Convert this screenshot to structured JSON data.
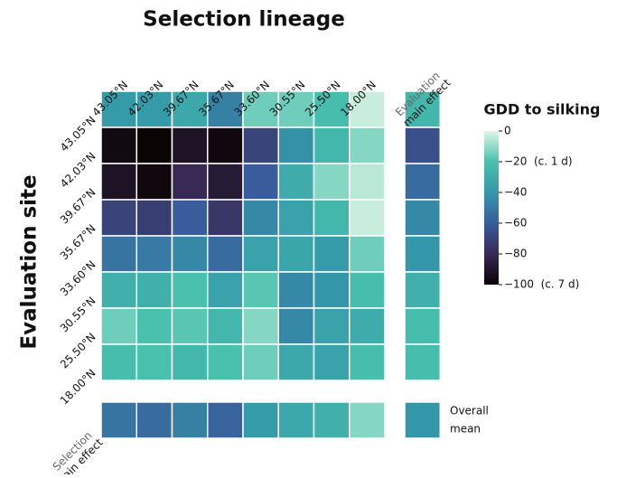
{
  "chart_data": {
    "type": "heatmap",
    "title": "Selection lineage",
    "ylabel": "Evaluation site",
    "x_categories": [
      "43.05°N",
      "42.03°N",
      "39.67°N",
      "35.67°N",
      "33.60°N",
      "30.55°N",
      "25.50°N",
      "18.00°N"
    ],
    "y_categories": [
      "43.05°N",
      "42.03°N",
      "39.67°N",
      "35.67°N",
      "33.60°N",
      "30.55°N",
      "25.50°N",
      "18.00°N"
    ],
    "values": [
      [
        -38,
        -38,
        -32,
        -48,
        -15,
        -15,
        -22,
        -3
      ],
      [
        -97,
        -100,
        -92,
        -98,
        -70,
        -42,
        -25,
        -12
      ],
      [
        -92,
        -98,
        -80,
        -88,
        -60,
        -30,
        -12,
        -5
      ],
      [
        -70,
        -72,
        -60,
        -75,
        -45,
        -35,
        -25,
        -3
      ],
      [
        -52,
        -50,
        -45,
        -55,
        -35,
        -33,
        -38,
        -15
      ],
      [
        -28,
        -28,
        -20,
        -35,
        -18,
        -45,
        -40,
        -22
      ],
      [
        -15,
        -20,
        -18,
        -25,
        -12,
        -45,
        -35,
        -30
      ],
      [
        -22,
        -20,
        -25,
        -20,
        -15,
        -32,
        -35,
        -22
      ]
    ],
    "evaluation_main_label": [
      "Evaluation",
      "main effect"
    ],
    "evaluation_main_values": [
      -25,
      -65,
      -55,
      -45,
      -40,
      -28,
      -22,
      -22
    ],
    "selection_main_label": [
      "Selection",
      "main effect"
    ],
    "selection_main_values": [
      -52,
      -55,
      -48,
      -58,
      -38,
      -32,
      -28,
      -12
    ],
    "overall_label": [
      "Overall",
      "mean"
    ],
    "overall_mean": -40,
    "colorbar_title": "GDD to silking",
    "clim": [
      -100,
      0
    ],
    "cticks": [
      0,
      {
        "value": -20,
        "label": "−20  (c. 1 d)"
      },
      {
        "value": -40,
        "label": "−40"
      },
      {
        "value": -60,
        "label": "−60"
      },
      {
        "value": -80,
        "label": "−80"
      },
      {
        "value": -100,
        "label": "−100  (c. 7 d)"
      }
    ],
    "colorscale": [
      "#0b0405",
      "#382a54",
      "#395d9c",
      "#3497a9",
      "#49c1ad",
      "#def5e5"
    ]
  }
}
